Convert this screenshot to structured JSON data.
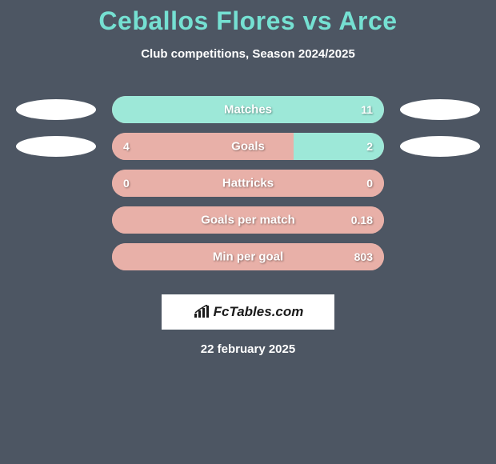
{
  "title": "Ceballos Flores vs Arce",
  "subtitle": "Club competitions, Season 2024/2025",
  "colors": {
    "background": "#4d5663",
    "title_color": "#75e0d2",
    "text_color": "#ffffff",
    "bar_left_color": "#e8b0a8",
    "bar_right_color": "#9de8d8",
    "ellipse_color": "#ffffff"
  },
  "rows": [
    {
      "label": "Matches",
      "left_value": "",
      "right_value": "11",
      "left_width_pct": 0,
      "right_width_pct": 100,
      "show_ellipse_left": true,
      "show_ellipse_right": true
    },
    {
      "label": "Goals",
      "left_value": "4",
      "right_value": "2",
      "left_width_pct": 66.7,
      "right_width_pct": 33.3,
      "show_ellipse_left": true,
      "show_ellipse_right": true
    },
    {
      "label": "Hattricks",
      "left_value": "0",
      "right_value": "0",
      "left_width_pct": 100,
      "right_width_pct": 0,
      "show_ellipse_left": false,
      "show_ellipse_right": false
    },
    {
      "label": "Goals per match",
      "left_value": "",
      "right_value": "0.18",
      "left_width_pct": 100,
      "right_width_pct": 0,
      "show_ellipse_left": false,
      "show_ellipse_right": false
    },
    {
      "label": "Min per goal",
      "left_value": "",
      "right_value": "803",
      "left_width_pct": 100,
      "right_width_pct": 0,
      "show_ellipse_left": false,
      "show_ellipse_right": false
    }
  ],
  "logo_text": "FcTables.com",
  "date_text": "22 february 2025"
}
